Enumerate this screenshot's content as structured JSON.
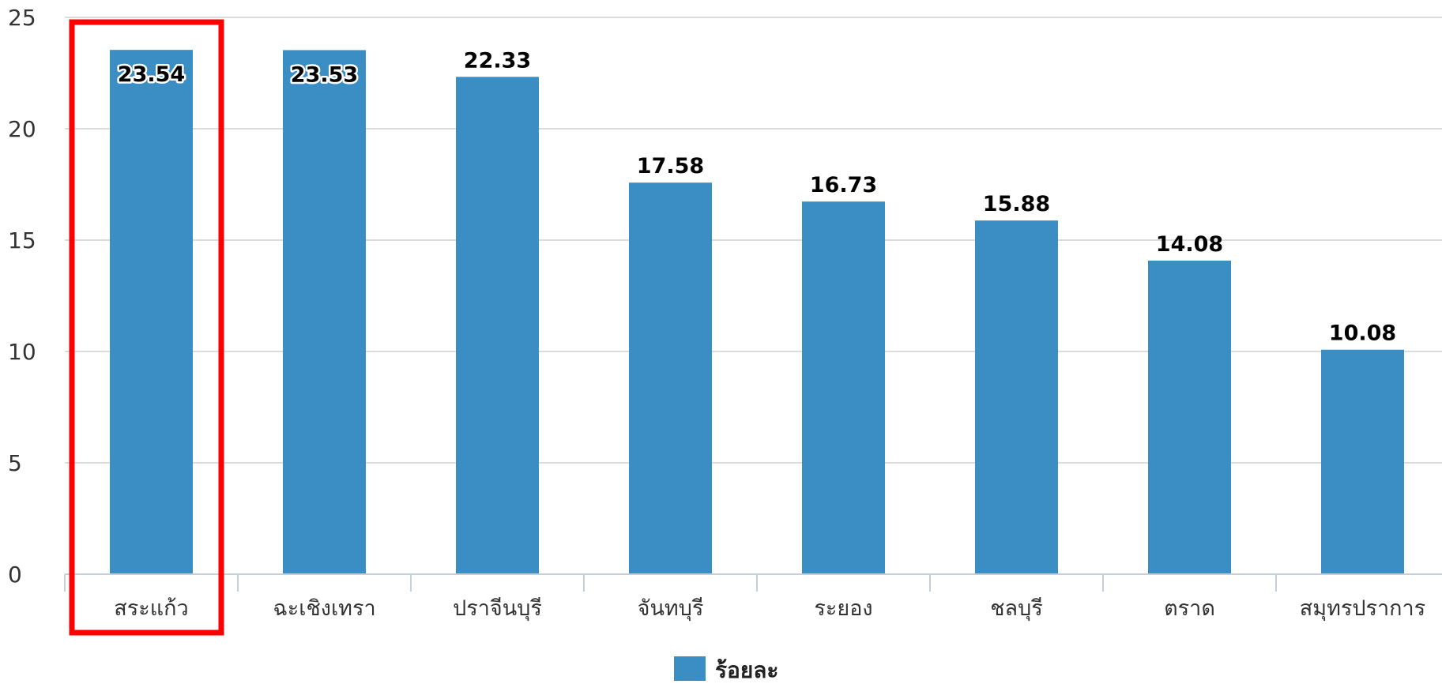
{
  "chart_data": {
    "type": "bar",
    "categories": [
      "สระแก้ว",
      "ฉะเชิงเทรา",
      "ปราจีนบุรี",
      "จันทบุรี",
      "ระยอง",
      "ชลบุรี",
      "ตราด",
      "สมุทรปราการ"
    ],
    "series": [
      {
        "name": "ร้อยละ",
        "values": [
          23.54,
          23.53,
          22.33,
          17.58,
          16.73,
          15.88,
          14.08,
          10.08
        ],
        "color": "#3a8ec4"
      }
    ],
    "data_labels": [
      "23.54",
      "23.53",
      "22.33",
      "17.58",
      "16.73",
      "15.88",
      "14.08",
      "10.08"
    ],
    "y_ticks": [
      "0",
      "5",
      "10",
      "15",
      "20",
      "25"
    ],
    "ylim": [
      0,
      25
    ],
    "title": "",
    "xlabel": "",
    "ylabel": "",
    "grid": true,
    "legend": {
      "position": "bottom-center",
      "label": "ร้อยละ"
    },
    "highlight": {
      "category": "สระแก้ว",
      "color": "#ff0000"
    }
  }
}
